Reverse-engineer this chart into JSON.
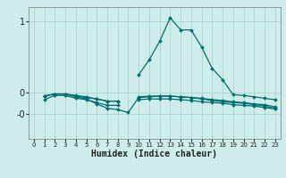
{
  "title": "",
  "xlabel": "Humidex (Indice chaleur)",
  "bg_color": "#ceecea",
  "grid_color": "#aed8d4",
  "line_color": "#006e6e",
  "xlim": [
    -0.5,
    23.5
  ],
  "ylim": [
    -0.65,
    1.2
  ],
  "ytick_positions": [
    1.0,
    0.0,
    -0.3
  ],
  "ytick_labels": [
    "1",
    "0",
    "-0"
  ],
  "series": [
    [
      null,
      -0.1,
      -0.04,
      -0.04,
      -0.08,
      -0.1,
      -0.14,
      -0.18,
      -0.18,
      null,
      -0.1,
      -0.09,
      -0.09,
      -0.09,
      -0.1,
      -0.11,
      -0.13,
      -0.14,
      -0.15,
      -0.17,
      -0.18,
      -0.19,
      -0.21,
      -0.23
    ],
    [
      null,
      -0.05,
      -0.02,
      -0.02,
      -0.04,
      -0.06,
      -0.09,
      -0.12,
      -0.12,
      null,
      -0.06,
      -0.05,
      -0.05,
      -0.05,
      -0.06,
      -0.07,
      -0.08,
      -0.1,
      -0.11,
      -0.13,
      -0.14,
      -0.16,
      -0.17,
      -0.2
    ],
    [
      null,
      -0.05,
      -0.02,
      -0.02,
      -0.06,
      -0.09,
      -0.16,
      -0.22,
      -0.24,
      -0.28,
      -0.07,
      -0.06,
      -0.05,
      -0.05,
      -0.06,
      -0.07,
      -0.09,
      -0.11,
      -0.13,
      -0.14,
      -0.15,
      -0.17,
      -0.19,
      -0.22
    ],
    [
      null,
      -0.05,
      -0.02,
      -0.02,
      -0.05,
      -0.07,
      -0.09,
      -0.12,
      -0.12,
      null,
      0.25,
      0.46,
      0.72,
      1.05,
      0.88,
      0.88,
      0.64,
      0.34,
      0.18,
      -0.03,
      -0.04,
      -0.06,
      -0.08,
      -0.1
    ]
  ]
}
